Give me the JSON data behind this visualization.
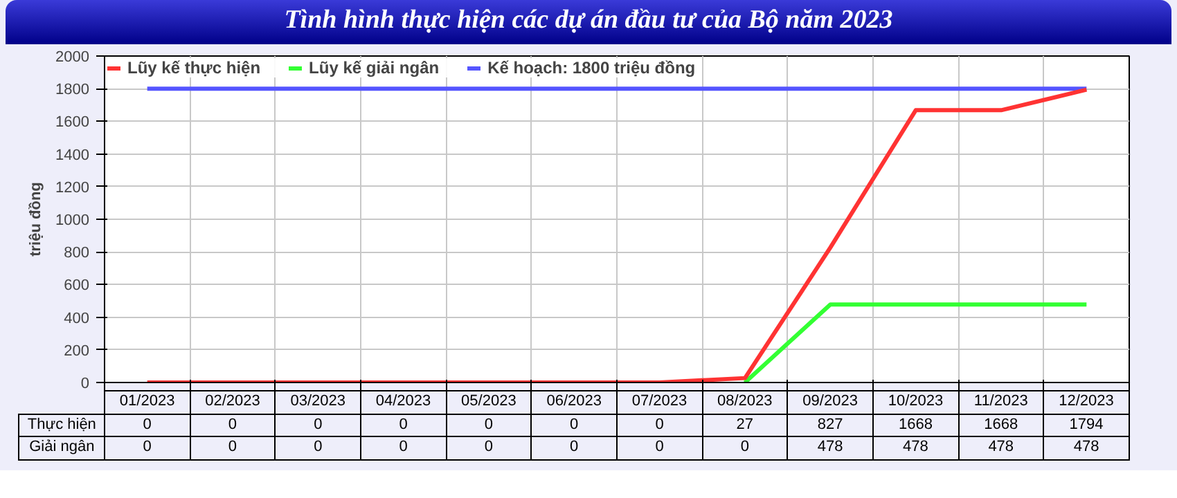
{
  "chart_data": {
    "type": "line",
    "title": "Tình hình thực hiện các dự án đầu tư của Bộ năm 2023",
    "ylabel": "triệu đồng",
    "categories": [
      "01/2023",
      "02/2023",
      "03/2023",
      "04/2023",
      "05/2023",
      "06/2023",
      "07/2023",
      "08/2023",
      "09/2023",
      "10/2023",
      "11/2023",
      "12/2023"
    ],
    "series": [
      {
        "name": "Lũy kế thực hiện",
        "color": "#ff3333",
        "values": [
          0,
          0,
          0,
          0,
          0,
          0,
          0,
          27,
          827,
          1668,
          1668,
          1794
        ],
        "value_labels": [
          "0",
          "0",
          "0",
          "0",
          "0",
          "0",
          "0",
          "27",
          "827",
          "1668",
          "1668",
          "1794"
        ]
      },
      {
        "name": "Lũy kế giải ngân",
        "color": "#33ff33",
        "values": [
          null,
          null,
          null,
          null,
          null,
          null,
          null,
          0,
          478,
          478,
          478,
          478
        ],
        "value_labels": [
          "0",
          "0",
          "0",
          "0",
          "0",
          "0",
          "0",
          "0",
          "478",
          "478",
          "478",
          "478"
        ]
      },
      {
        "name": "Kế hoạch: 1800 triệu đồng",
        "color": "#5555ff",
        "values": [
          1800,
          1800,
          1800,
          1800,
          1800,
          1800,
          1800,
          1800,
          1800,
          1800,
          1800,
          1800
        ]
      }
    ],
    "annotations": [
      "Thực hiện",
      "Giải ngân"
    ],
    "ylim": [
      0,
      2000
    ],
    "yticks": [
      0,
      200,
      400,
      600,
      800,
      1000,
      1200,
      1400,
      1600,
      1800,
      2000
    ],
    "grid": true,
    "legend": "top left",
    "marker": "none",
    "line_style": "solid"
  }
}
